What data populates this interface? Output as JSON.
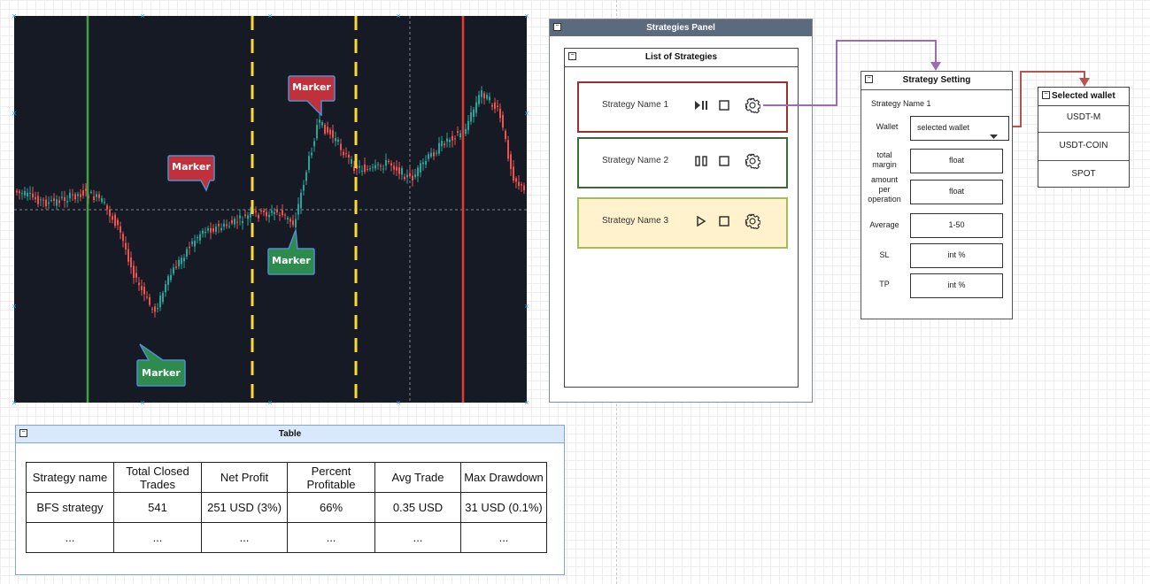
{
  "chart": {
    "markers": [
      {
        "label": "Marker",
        "color": "#c0313c"
      },
      {
        "label": "Marker",
        "color": "#c0313c"
      },
      {
        "label": "Marker",
        "color": "#2e8b4e"
      },
      {
        "label": "Marker",
        "color": "#2e8b4e"
      }
    ],
    "colors": {
      "background": "#161a25",
      "up": "#26a69a",
      "down": "#ef5350",
      "entry_line": "#43a047",
      "exit_line": "#e53935",
      "dash_line": "#fdd835"
    }
  },
  "strategies_panel": {
    "title": "Strategies Panel",
    "list_title": "List of Strategies",
    "strategies": [
      {
        "name": "Strategy Name 1",
        "status_icon": "play-pause-icon",
        "border": "#9b2f2f",
        "fill": "#ffffff"
      },
      {
        "name": "Strategy Name 2",
        "status_icon": "pause-icon",
        "border": "#3a6b35",
        "fill": "#ffffff"
      },
      {
        "name": "Strategy Name 3",
        "status_icon": "play-icon",
        "border": "#9fbe5a",
        "fill": "#fff2cc"
      }
    ]
  },
  "strategy_setting": {
    "title": "Strategy Setting",
    "strategy_name": "Strategy Name 1",
    "wallet_label": "Wallet",
    "wallet_value": "selected wallet",
    "fields": [
      {
        "label": "total\nmargin",
        "value": "float"
      },
      {
        "label": "amount\nper\noperation",
        "value": "float"
      },
      {
        "label": "Average",
        "value": "1-50"
      },
      {
        "label": "SL",
        "value": "int %"
      },
      {
        "label": "TP",
        "value": "int %"
      }
    ]
  },
  "selected_wallet": {
    "title": "Selected wallet",
    "options": [
      "USDT-M",
      "USDT-COIN",
      "SPOT"
    ]
  },
  "table": {
    "title": "Table",
    "headers": [
      "Strategy name",
      "Total Closed Trades",
      "Net Profit",
      "Percent Profitable",
      "Avg Trade",
      "Max Drawdown"
    ],
    "rows": [
      [
        "BFS strategy",
        "541",
        "251 USD (3%)",
        "66%",
        "0.35 USD",
        "31 USD (0.1%)"
      ],
      [
        "...",
        "...",
        "...",
        "...",
        "...",
        "..."
      ]
    ]
  },
  "connectors": {
    "setting_link": "#9b6bb3",
    "wallet_link": "#b85450"
  }
}
